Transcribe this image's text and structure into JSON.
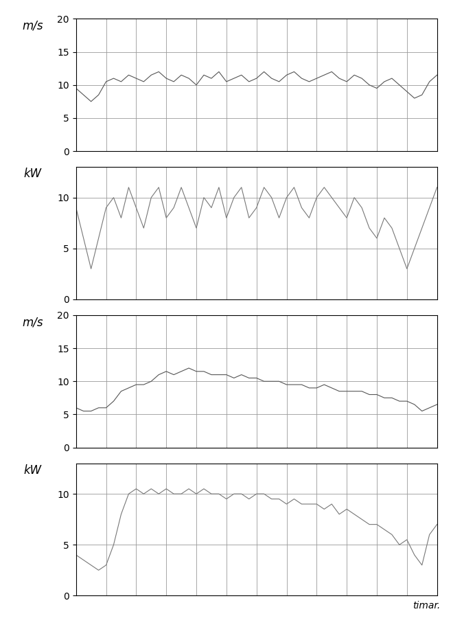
{
  "chart_data": [
    {
      "type": "line",
      "y_label": "m/s",
      "color": "#555555",
      "grid": true,
      "tick_labels": "y",
      "x": [
        0,
        0.25,
        0.5,
        0.75,
        1,
        1.25,
        1.5,
        1.75,
        2,
        2.25,
        2.5,
        2.75,
        3,
        3.25,
        3.5,
        3.75,
        4,
        4.25,
        4.5,
        4.75,
        5,
        5.25,
        5.5,
        5.75,
        6,
        6.25,
        6.5,
        6.75,
        7,
        7.25,
        7.5,
        7.75,
        8,
        8.25,
        8.5,
        8.75,
        9,
        9.25,
        9.5,
        9.75,
        10,
        10.25,
        10.5,
        10.75,
        11,
        11.25,
        11.5,
        11.75,
        12
      ],
      "values": [
        9.5,
        8.5,
        7.5,
        8.5,
        10.5,
        11,
        10.5,
        11.5,
        11,
        10.5,
        11.5,
        12,
        11,
        10.5,
        11.5,
        11,
        10,
        11.5,
        11,
        12,
        10.5,
        11,
        11.5,
        10.5,
        11,
        12,
        11,
        10.5,
        11.5,
        12,
        11,
        10.5,
        11,
        11.5,
        12,
        11,
        10.5,
        11.5,
        11,
        10,
        9.5,
        10.5,
        11,
        10,
        9,
        8,
        8.5,
        10.5,
        11.5
      ],
      "xlim": [
        0,
        12
      ],
      "xticks": [
        0,
        1,
        2,
        3,
        4,
        5,
        6,
        7,
        8,
        9,
        10,
        11,
        12
      ],
      "ylim": [
        0,
        20
      ],
      "yticks": [
        0,
        5,
        10,
        15,
        20
      ]
    },
    {
      "type": "line",
      "y_label": "kW",
      "color": "#777777",
      "grid": true,
      "tick_labels": "y",
      "x": [
        0,
        0.25,
        0.5,
        0.75,
        1,
        1.25,
        1.5,
        1.75,
        2,
        2.25,
        2.5,
        2.75,
        3,
        3.25,
        3.5,
        3.75,
        4,
        4.25,
        4.5,
        4.75,
        5,
        5.25,
        5.5,
        5.75,
        6,
        6.25,
        6.5,
        6.75,
        7,
        7.25,
        7.5,
        7.75,
        8,
        8.25,
        8.5,
        8.75,
        9,
        9.25,
        9.5,
        9.75,
        10,
        10.25,
        10.5,
        10.75,
        11,
        11.25,
        11.5,
        11.75,
        12
      ],
      "values": [
        9,
        6,
        3,
        6,
        9,
        10,
        8,
        11,
        9,
        7,
        10,
        11,
        8,
        9,
        11,
        9,
        7,
        10,
        9,
        11,
        8,
        10,
        11,
        8,
        9,
        11,
        10,
        8,
        10,
        11,
        9,
        8,
        10,
        11,
        10,
        9,
        8,
        10,
        9,
        7,
        6,
        8,
        7,
        5,
        3,
        5,
        7,
        9,
        11
      ],
      "xlim": [
        0,
        12
      ],
      "xticks": [
        0,
        1,
        2,
        3,
        4,
        5,
        6,
        7,
        8,
        9,
        10,
        11,
        12
      ],
      "ylim": [
        0,
        13
      ],
      "yticks": [
        0,
        5,
        10
      ]
    },
    {
      "type": "line",
      "y_label": "m/s",
      "color": "#555555",
      "grid": true,
      "tick_labels": "y",
      "x": [
        0,
        0.25,
        0.5,
        0.75,
        1,
        1.25,
        1.5,
        1.75,
        2,
        2.25,
        2.5,
        2.75,
        3,
        3.25,
        3.5,
        3.75,
        4,
        4.25,
        4.5,
        4.75,
        5,
        5.25,
        5.5,
        5.75,
        6,
        6.25,
        6.5,
        6.75,
        7,
        7.25,
        7.5,
        7.75,
        8,
        8.25,
        8.5,
        8.75,
        9,
        9.25,
        9.5,
        9.75,
        10,
        10.25,
        10.5,
        10.75,
        11,
        11.25,
        11.5,
        11.75,
        12
      ],
      "values": [
        6,
        5.5,
        5.5,
        6,
        6,
        7,
        8.5,
        9,
        9.5,
        9.5,
        10,
        11,
        11.5,
        11,
        11.5,
        12,
        11.5,
        11.5,
        11,
        11,
        11,
        10.5,
        11,
        10.5,
        10.5,
        10,
        10,
        10,
        9.5,
        9.5,
        9.5,
        9,
        9,
        9.5,
        9,
        8.5,
        8.5,
        8.5,
        8.5,
        8,
        8,
        7.5,
        7.5,
        7,
        7,
        6.5,
        5.5,
        6,
        6.5
      ],
      "xlim": [
        0,
        12
      ],
      "xticks": [
        0,
        1,
        2,
        3,
        4,
        5,
        6,
        7,
        8,
        9,
        10,
        11,
        12
      ],
      "ylim": [
        0,
        20
      ],
      "yticks": [
        0,
        5,
        10,
        15,
        20
      ]
    },
    {
      "type": "line",
      "y_label": "kW",
      "x_label": "timar.",
      "color": "#777777",
      "grid": true,
      "tick_labels": "y",
      "x": [
        0,
        0.25,
        0.5,
        0.75,
        1,
        1.25,
        1.5,
        1.75,
        2,
        2.25,
        2.5,
        2.75,
        3,
        3.25,
        3.5,
        3.75,
        4,
        4.25,
        4.5,
        4.75,
        5,
        5.25,
        5.5,
        5.75,
        6,
        6.25,
        6.5,
        6.75,
        7,
        7.25,
        7.5,
        7.75,
        8,
        8.25,
        8.5,
        8.75,
        9,
        9.25,
        9.5,
        9.75,
        10,
        10.25,
        10.5,
        10.75,
        11,
        11.25,
        11.5,
        11.75,
        12
      ],
      "values": [
        4,
        3.5,
        3,
        2.5,
        3,
        5,
        8,
        10,
        10.5,
        10,
        10.5,
        10,
        10.5,
        10,
        10,
        10.5,
        10,
        10.5,
        10,
        10,
        9.5,
        10,
        10,
        9.5,
        10,
        10,
        9.5,
        9.5,
        9,
        9.5,
        9,
        9,
        9,
        8.5,
        9,
        8,
        8.5,
        8,
        7.5,
        7,
        7,
        6.5,
        6,
        5,
        5.5,
        4,
        3,
        6,
        7
      ],
      "xlim": [
        0,
        12
      ],
      "xticks": [
        0,
        1,
        2,
        3,
        4,
        5,
        6,
        7,
        8,
        9,
        10,
        11,
        12
      ],
      "ylim": [
        0,
        13
      ],
      "yticks": [
        0,
        5,
        10
      ]
    }
  ]
}
